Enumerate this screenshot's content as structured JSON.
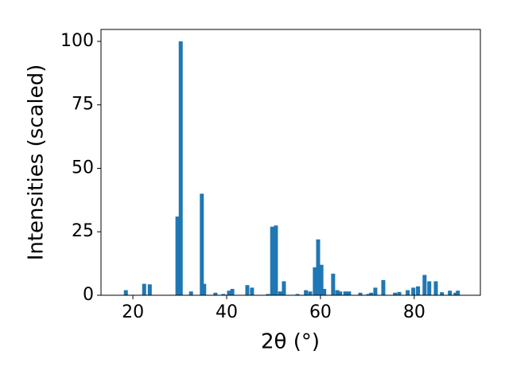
{
  "chart_data": {
    "type": "bar",
    "xlabel": "2θ (°)",
    "ylabel": "Intensities (scaled)",
    "color": "#1f77b4",
    "grid": false,
    "x": [
      18.5,
      22.4,
      23.6,
      29.5,
      30.2,
      32.4,
      34.7,
      35.2,
      37.6,
      39.3,
      40.5,
      41.2,
      44.4,
      45.4,
      48.8,
      49.7,
      50.5,
      51.4,
      52.2,
      55.1,
      56.9,
      57.8,
      58.8,
      59.5,
      60.2,
      60.8,
      62.7,
      63.6,
      64.2,
      65.3,
      66.1,
      68.5,
      70.2,
      70.8,
      71.7,
      73.4,
      75.9,
      76.8,
      78.6,
      79.8,
      80.8,
      82.2,
      83.2,
      84.6,
      85.9,
      87.6,
      88.8,
      89.3
    ],
    "values": [
      2,
      4.5,
      4.3,
      31,
      100,
      1.5,
      40,
      4.5,
      1,
      0.5,
      1.8,
      2.5,
      4,
      3,
      0.5,
      27,
      27.5,
      1.5,
      5.5,
      0.5,
      2,
      1.5,
      11,
      22,
      12,
      2.5,
      8.5,
      2,
      1.5,
      1.5,
      1.5,
      1,
      0.5,
      1,
      3,
      6,
      1,
      1.3,
      2,
      3,
      3.5,
      8,
      5.5,
      5.5,
      1.2,
      1.8,
      1,
      1.8
    ],
    "xlim": [
      13.2,
      94.1
    ],
    "ylim": [
      0,
      104.7
    ],
    "xticks": [
      20,
      40,
      60,
      80
    ],
    "yticks": [
      0,
      25,
      50,
      75,
      100
    ]
  }
}
